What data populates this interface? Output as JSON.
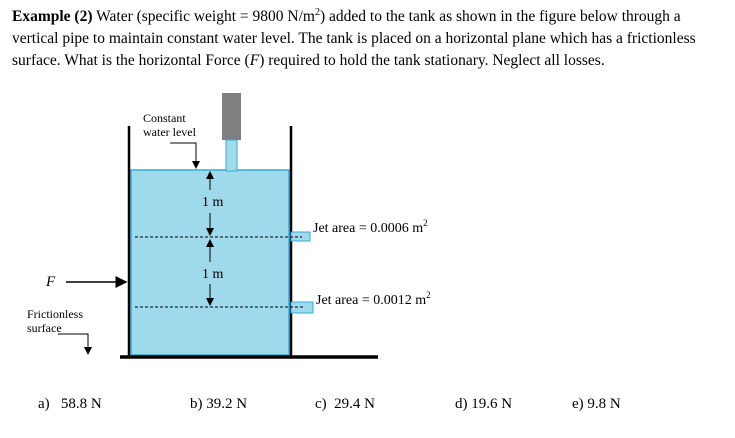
{
  "problem": {
    "label": "Example (2)",
    "parts": [
      "Water (specific weight = 9800 N/m",
      "2",
      ") added to the tank as shown in the figure below through a vertical pipe to maintain constant water level. The tank is placed on a horizontal plane which has a frictionless surface. What is the horizontal Force (",
      "F",
      ") required to hold the tank stationary. Neglect all losses."
    ]
  },
  "figure": {
    "level_label": [
      "Constant",
      "water level"
    ],
    "depth_labels": [
      "1 m",
      "1 m"
    ],
    "jets": [
      {
        "text": "Jet area = 0.0006 m",
        "sup": "2"
      },
      {
        "text": "Jet area = 0.0012 m",
        "sup": "2"
      }
    ],
    "force": "F",
    "surface_label": [
      "Frictionless",
      "surface"
    ]
  },
  "options": [
    {
      "letter": "a)",
      "text": "58.8 N"
    },
    {
      "letter": "b)",
      "text": "39.2 N"
    },
    {
      "letter": "c)",
      "text": "29.4 N"
    },
    {
      "letter": "d)",
      "text": "19.6 N"
    },
    {
      "letter": "e)",
      "text": "9.8 N"
    }
  ]
}
